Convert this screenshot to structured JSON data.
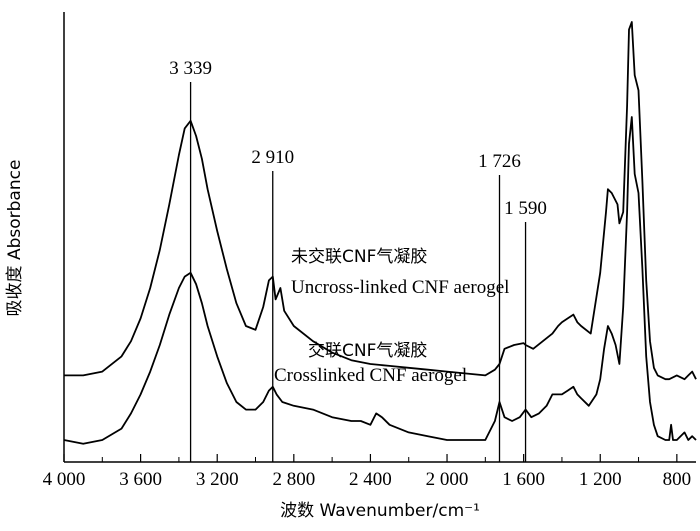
{
  "chart_data": {
    "type": "line",
    "xlabel": "波数 Wavenumber/cm⁻¹",
    "ylabel": "吸收度 Absorbance",
    "xlim": [
      4000,
      700
    ],
    "x_reversed": true,
    "grid": false,
    "x_ticks": [
      {
        "value": 4000,
        "label": "4 000"
      },
      {
        "value": 3600,
        "label": "3 600"
      },
      {
        "value": 3200,
        "label": "3 200"
      },
      {
        "value": 2800,
        "label": "2 800"
      },
      {
        "value": 2400,
        "label": "2 400"
      },
      {
        "value": 2000,
        "label": "2 000"
      },
      {
        "value": 1600,
        "label": "1 600"
      },
      {
        "value": 1200,
        "label": "1 200"
      },
      {
        "value": 800,
        "label": "800"
      }
    ],
    "peaks": [
      {
        "x": 3339,
        "label": "3 339"
      },
      {
        "x": 2910,
        "label": "2 910"
      },
      {
        "x": 1726,
        "label": "1 726"
      },
      {
        "x": 1590,
        "label": "1 590"
      }
    ],
    "series": [
      {
        "name": "未交联CNF气凝胶",
        "name_en": "Uncross-linked CNF aerogel",
        "x": [
          4000,
          3900,
          3800,
          3700,
          3650,
          3600,
          3550,
          3500,
          3450,
          3400,
          3370,
          3339,
          3310,
          3280,
          3250,
          3200,
          3150,
          3100,
          3050,
          3000,
          2960,
          2930,
          2910,
          2895,
          2870,
          2850,
          2800,
          2700,
          2600,
          2500,
          2400,
          2300,
          2200,
          2100,
          2000,
          1900,
          1800,
          1750,
          1726,
          1700,
          1650,
          1600,
          1590,
          1550,
          1500,
          1450,
          1420,
          1400,
          1370,
          1340,
          1320,
          1300,
          1250,
          1200,
          1170,
          1160,
          1140,
          1110,
          1100,
          1080,
          1060,
          1050,
          1035,
          1020,
          1000,
          980,
          960,
          940,
          920,
          900,
          860,
          840,
          800,
          760,
          740,
          720,
          700
        ],
        "y": [
          0.07,
          0.07,
          0.08,
          0.12,
          0.16,
          0.22,
          0.3,
          0.4,
          0.52,
          0.65,
          0.72,
          0.74,
          0.7,
          0.64,
          0.56,
          0.45,
          0.35,
          0.26,
          0.2,
          0.19,
          0.25,
          0.32,
          0.33,
          0.27,
          0.3,
          0.24,
          0.2,
          0.16,
          0.13,
          0.11,
          0.1,
          0.095,
          0.09,
          0.085,
          0.08,
          0.075,
          0.07,
          0.085,
          0.1,
          0.14,
          0.15,
          0.155,
          0.15,
          0.14,
          0.16,
          0.18,
          0.2,
          0.21,
          0.22,
          0.23,
          0.21,
          0.2,
          0.18,
          0.34,
          0.5,
          0.56,
          0.55,
          0.52,
          0.47,
          0.5,
          0.78,
          0.98,
          1.0,
          0.86,
          0.82,
          0.58,
          0.32,
          0.16,
          0.09,
          0.07,
          0.06,
          0.06,
          0.07,
          0.06,
          0.07,
          0.08,
          0.06
        ]
      },
      {
        "name": "交联CNF气凝胶",
        "name_en": "Crosslinked CNF aerogel",
        "x": [
          4000,
          3900,
          3800,
          3700,
          3650,
          3600,
          3550,
          3500,
          3450,
          3400,
          3370,
          3339,
          3310,
          3280,
          3250,
          3200,
          3150,
          3100,
          3050,
          3000,
          2960,
          2930,
          2910,
          2890,
          2860,
          2800,
          2700,
          2600,
          2500,
          2450,
          2400,
          2370,
          2340,
          2300,
          2200,
          2100,
          2000,
          1900,
          1800,
          1750,
          1726,
          1700,
          1660,
          1620,
          1590,
          1560,
          1520,
          1480,
          1450,
          1400,
          1370,
          1340,
          1320,
          1300,
          1260,
          1220,
          1200,
          1180,
          1160,
          1140,
          1120,
          1100,
          1080,
          1060,
          1050,
          1035,
          1020,
          1000,
          980,
          960,
          940,
          920,
          900,
          860,
          840,
          830,
          820,
          800,
          760,
          740,
          720,
          700
        ],
        "y": [
          -0.1,
          -0.11,
          -0.1,
          -0.07,
          -0.03,
          0.02,
          0.08,
          0.15,
          0.23,
          0.3,
          0.33,
          0.34,
          0.31,
          0.26,
          0.2,
          0.12,
          0.05,
          0.0,
          -0.02,
          -0.02,
          -0.0,
          0.03,
          0.04,
          0.02,
          0.0,
          -0.01,
          -0.02,
          -0.04,
          -0.05,
          -0.05,
          -0.06,
          -0.03,
          -0.04,
          -0.06,
          -0.08,
          -0.09,
          -0.1,
          -0.1,
          -0.1,
          -0.05,
          0.0,
          -0.04,
          -0.05,
          -0.04,
          -0.02,
          -0.04,
          -0.03,
          -0.01,
          0.02,
          0.02,
          0.03,
          0.04,
          0.02,
          0.01,
          -0.01,
          0.02,
          0.06,
          0.14,
          0.2,
          0.18,
          0.15,
          0.1,
          0.25,
          0.5,
          0.68,
          0.75,
          0.6,
          0.55,
          0.35,
          0.12,
          0.0,
          -0.06,
          -0.09,
          -0.1,
          -0.1,
          -0.06,
          -0.1,
          -0.1,
          -0.08,
          -0.1,
          -0.09,
          -0.1
        ]
      }
    ]
  }
}
